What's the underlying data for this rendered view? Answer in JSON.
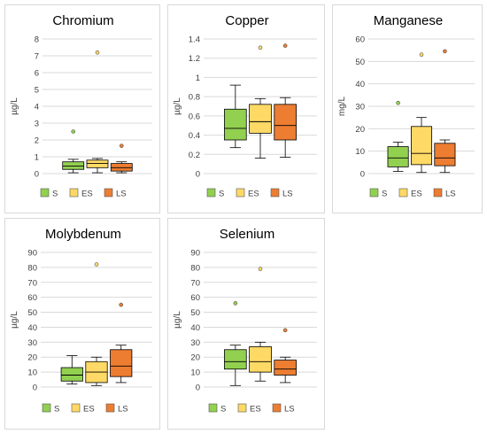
{
  "chart_data": [
    {
      "type": "box",
      "title": "Chromium",
      "ylabel": "µg/L",
      "ylim": [
        0,
        8
      ],
      "yticks": [
        0,
        1,
        2,
        3,
        4,
        5,
        6,
        7,
        8
      ],
      "legend_position": "bottom",
      "series": [
        {
          "name": "S",
          "color": "#92d050",
          "min": 0.05,
          "q1": 0.25,
          "median": 0.45,
          "q3": 0.7,
          "max": 0.85,
          "outliers": [
            2.5
          ]
        },
        {
          "name": "ES",
          "color": "#ffd966",
          "min": 0.05,
          "q1": 0.35,
          "median": 0.6,
          "q3": 0.8,
          "max": 0.9,
          "outliers": [
            7.2
          ]
        },
        {
          "name": "LS",
          "color": "#ed7d31",
          "min": 0.05,
          "q1": 0.15,
          "median": 0.35,
          "q3": 0.6,
          "max": 0.7,
          "outliers": [
            1.65
          ]
        }
      ]
    },
    {
      "type": "box",
      "title": "Copper",
      "ylabel": "µg/L",
      "ylim": [
        0,
        1.4
      ],
      "yticks": [
        0,
        0.2,
        0.4,
        0.6,
        0.8,
        1,
        1.2,
        1.4
      ],
      "legend_position": "bottom",
      "series": [
        {
          "name": "S",
          "color": "#92d050",
          "min": 0.27,
          "q1": 0.35,
          "median": 0.47,
          "q3": 0.67,
          "max": 0.92,
          "outliers": []
        },
        {
          "name": "ES",
          "color": "#ffd966",
          "min": 0.16,
          "q1": 0.42,
          "median": 0.54,
          "q3": 0.72,
          "max": 0.78,
          "outliers": [
            1.31
          ]
        },
        {
          "name": "LS",
          "color": "#ed7d31",
          "min": 0.17,
          "q1": 0.35,
          "median": 0.5,
          "q3": 0.72,
          "max": 0.79,
          "outliers": [
            1.33
          ]
        }
      ]
    },
    {
      "type": "box",
      "title": "Manganese",
      "ylabel": "mg/L",
      "ylim": [
        0,
        60
      ],
      "yticks": [
        0,
        10,
        20,
        30,
        40,
        50,
        60
      ],
      "legend_position": "bottom",
      "series": [
        {
          "name": "S",
          "color": "#92d050",
          "min": 1,
          "q1": 3,
          "median": 7,
          "q3": 12,
          "max": 14,
          "outliers": [
            31.5
          ]
        },
        {
          "name": "ES",
          "color": "#ffd966",
          "min": 0.5,
          "q1": 4,
          "median": 9,
          "q3": 21,
          "max": 25,
          "outliers": [
            53
          ]
        },
        {
          "name": "LS",
          "color": "#ed7d31",
          "min": 0.5,
          "q1": 3.5,
          "median": 7,
          "q3": 13.5,
          "max": 15,
          "outliers": [
            54.5
          ]
        }
      ]
    },
    {
      "type": "box",
      "title": "Molybdenum",
      "ylabel": "µg/L",
      "ylim": [
        0,
        90
      ],
      "yticks": [
        0,
        10,
        20,
        30,
        40,
        50,
        60,
        70,
        80,
        90
      ],
      "legend_position": "bottom",
      "series": [
        {
          "name": "S",
          "color": "#92d050",
          "min": 2,
          "q1": 4,
          "median": 8,
          "q3": 13,
          "max": 21,
          "outliers": []
        },
        {
          "name": "ES",
          "color": "#ffd966",
          "min": 1,
          "q1": 3,
          "median": 10,
          "q3": 17,
          "max": 20,
          "outliers": [
            82
          ]
        },
        {
          "name": "LS",
          "color": "#ed7d31",
          "min": 3,
          "q1": 7,
          "median": 14,
          "q3": 25,
          "max": 28,
          "outliers": [
            55
          ]
        }
      ]
    },
    {
      "type": "box",
      "title": "Selenium",
      "ylabel": "µg/L",
      "ylim": [
        0,
        90
      ],
      "yticks": [
        0,
        10,
        20,
        30,
        40,
        50,
        60,
        70,
        80,
        90
      ],
      "legend_position": "bottom",
      "series": [
        {
          "name": "S",
          "color": "#92d050",
          "min": 1,
          "q1": 12,
          "median": 17,
          "q3": 25,
          "max": 28,
          "outliers": [
            56
          ]
        },
        {
          "name": "ES",
          "color": "#ffd966",
          "min": 4,
          "q1": 10,
          "median": 17,
          "q3": 27,
          "max": 30,
          "outliers": [
            79
          ]
        },
        {
          "name": "LS",
          "color": "#ed7d31",
          "min": 3,
          "q1": 8,
          "median": 12,
          "q3": 18,
          "max": 20,
          "outliers": [
            38
          ]
        }
      ]
    }
  ]
}
